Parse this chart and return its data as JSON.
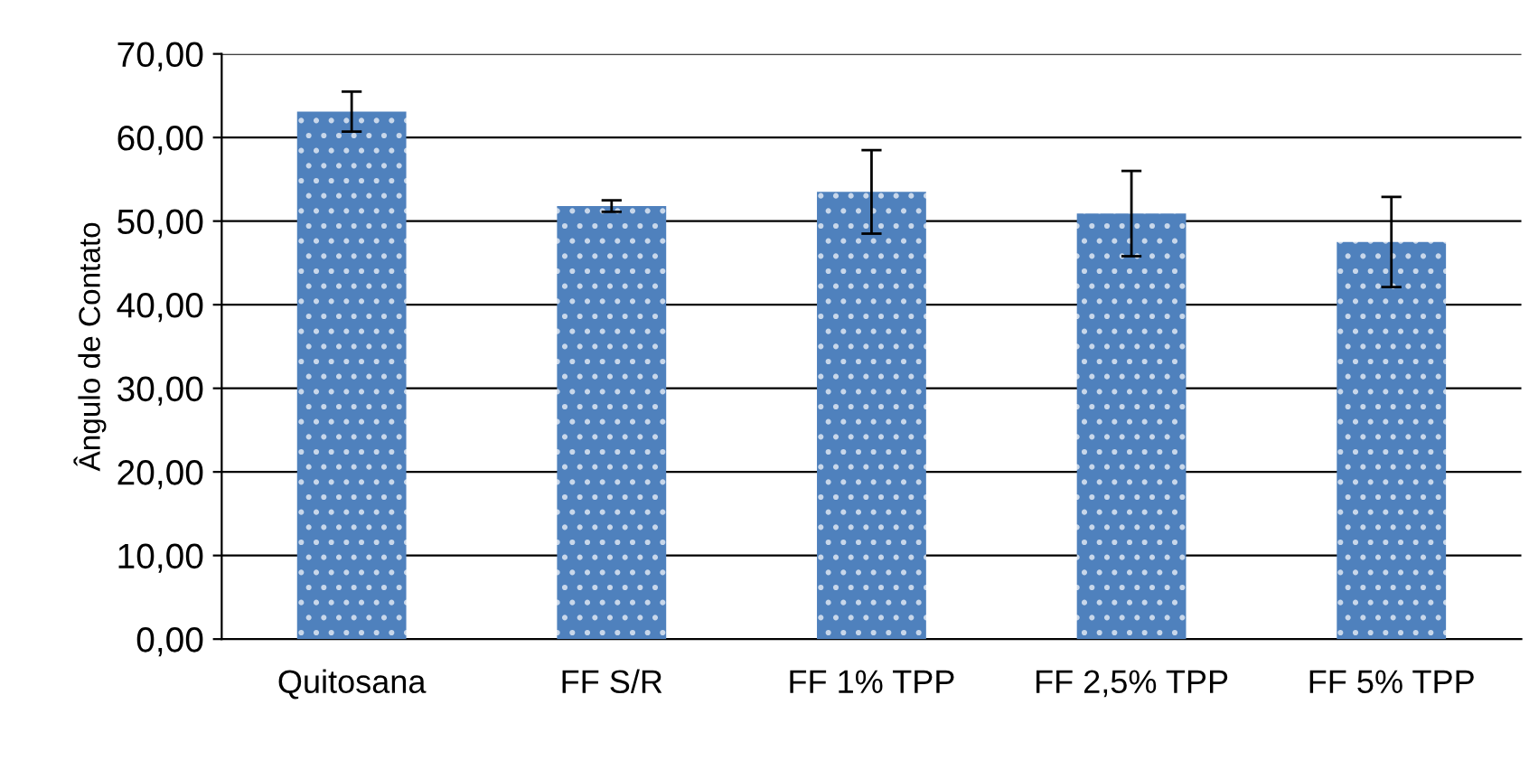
{
  "chart_data": {
    "type": "bar",
    "ylabel": "Ângulo de Contato",
    "categories": [
      "Quitosana",
      "FF S/R",
      "FF 1% TPP",
      "FF 2,5% TPP",
      "FF 5% TPP"
    ],
    "values": [
      63.1,
      51.8,
      53.5,
      50.9,
      47.5
    ],
    "errors": [
      2.4,
      0.7,
      5.0,
      5.1,
      5.4
    ],
    "color": "#4f81bd",
    "ylim": [
      0,
      70
    ],
    "yticks": [
      {
        "value": 0,
        "label": "0,00"
      },
      {
        "value": 10,
        "label": "10,00"
      },
      {
        "value": 20,
        "label": "20,00"
      },
      {
        "value": 30,
        "label": "30,00"
      },
      {
        "value": 40,
        "label": "40,00"
      },
      {
        "value": 50,
        "label": "50,00"
      },
      {
        "value": 60,
        "label": "60,00"
      },
      {
        "value": 70,
        "label": "70,00"
      }
    ],
    "grid": "y"
  }
}
